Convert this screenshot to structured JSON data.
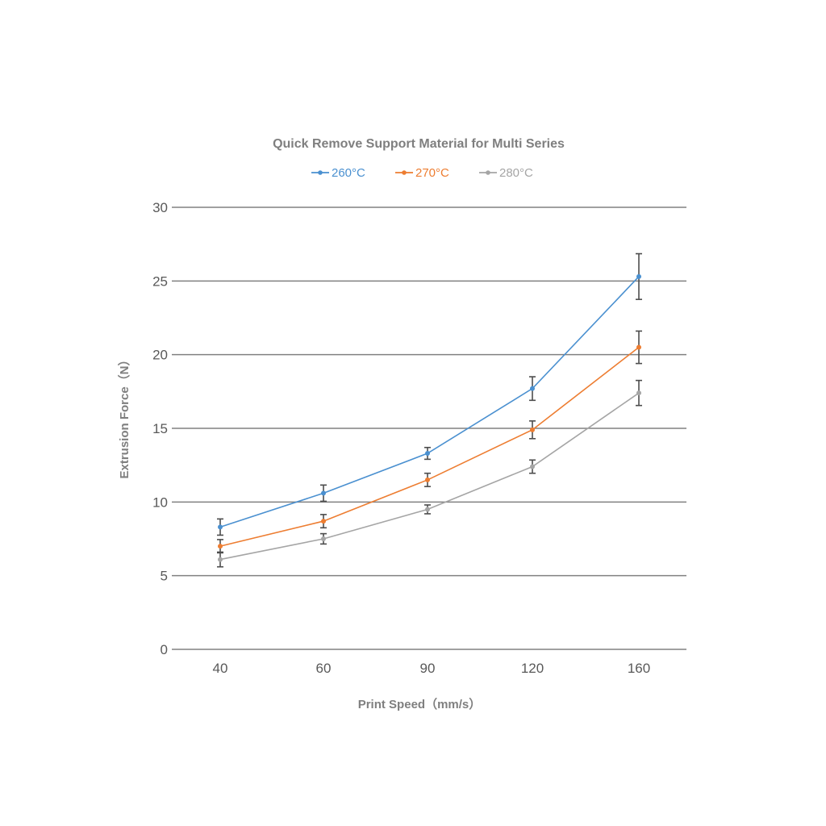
{
  "chart_data": {
    "type": "line",
    "title": "Quick Remove Support Material for Multi Series",
    "xlabel": "Print Speed（mm/s）",
    "ylabel": "Extrusion Force（N）",
    "categories": [
      "40",
      "60",
      "90",
      "120",
      "160"
    ],
    "ylim": [
      0,
      30
    ],
    "yticks": [
      0,
      5,
      10,
      15,
      20,
      25,
      30
    ],
    "grid": true,
    "legend": "top-center",
    "series": [
      {
        "name": "260°C",
        "color": "#4a90d0",
        "values": [
          8.3,
          10.6,
          13.3,
          17.7,
          25.3
        ],
        "errors": [
          0.55,
          0.55,
          0.4,
          0.8,
          1.55
        ]
      },
      {
        "name": "270°C",
        "color": "#ed7d31",
        "values": [
          7.0,
          8.7,
          11.5,
          14.9,
          20.5
        ],
        "errors": [
          0.45,
          0.45,
          0.45,
          0.6,
          1.1
        ]
      },
      {
        "name": "280°C",
        "color": "#a5a5a5",
        "values": [
          6.1,
          7.5,
          9.5,
          12.4,
          17.4
        ],
        "errors": [
          0.5,
          0.35,
          0.3,
          0.45,
          0.85
        ]
      }
    ],
    "error_bar_color": "#4d4d4d",
    "gridline_color": "#808080"
  }
}
